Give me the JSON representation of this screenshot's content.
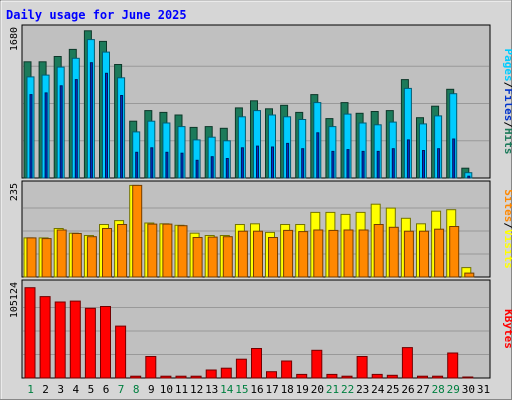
{
  "chart_data": {
    "type": "bar",
    "title": "Daily usage for June 2025",
    "colors": {
      "hits": "#1c7a5a",
      "files": "#00ccff",
      "pages": "#0033cc",
      "visits": "#ffff00",
      "sites": "#ff8800",
      "kbytes": "#ff0000",
      "panel_bg": "#c0c0c0",
      "frame_bg": "#d6d6d6",
      "title_color": "#0000ff",
      "weekend_label": "#008040"
    },
    "days": [
      "1",
      "2",
      "3",
      "4",
      "5",
      "6",
      "7",
      "8",
      "9",
      "10",
      "11",
      "12",
      "13",
      "14",
      "15",
      "16",
      "17",
      "18",
      "19",
      "20",
      "21",
      "22",
      "23",
      "24",
      "25",
      "26",
      "27",
      "28",
      "29",
      "30",
      "31"
    ],
    "weekend_days": [
      "1",
      "7",
      "8",
      "14",
      "15",
      "21",
      "22",
      "28",
      "29"
    ],
    "panels": [
      {
        "key": "hits_files_pages",
        "ymax_label": "1680",
        "ymax": 1680,
        "right_labels": [
          "Pages",
          "/",
          "Files",
          "/",
          "Hits"
        ],
        "right_label_colors": [
          "#00ccff",
          "#000000",
          "#0033cc",
          "#000000",
          "#1c7a5a"
        ],
        "series": [
          {
            "name": "Hits",
            "key": "hits",
            "values": [
              1310,
              1310,
              1370,
              1450,
              1660,
              1540,
              1280,
              640,
              760,
              740,
              710,
              570,
              580,
              560,
              790,
              870,
              780,
              820,
              740,
              940,
              670,
              850,
              730,
              750,
              760,
              1110,
              680,
              810,
              1000,
              110,
              0
            ]
          },
          {
            "name": "Files",
            "key": "files",
            "values": [
              1140,
              1160,
              1250,
              1350,
              1560,
              1420,
              1130,
              520,
              640,
              620,
              580,
              430,
              460,
              420,
              690,
              760,
              710,
              690,
              660,
              850,
              580,
              720,
              620,
              600,
              630,
              1010,
              610,
              700,
              950,
              60,
              0
            ]
          },
          {
            "name": "Pages",
            "key": "pages",
            "values": [
              940,
              960,
              1040,
              1110,
              1300,
              1180,
              930,
              290,
              340,
              290,
              280,
              200,
              240,
              220,
              340,
              360,
              350,
              390,
              330,
              510,
              300,
              320,
              300,
              300,
              330,
              430,
              310,
              330,
              440,
              20,
              0
            ]
          }
        ]
      },
      {
        "key": "visits_sites",
        "ymax_label": "235",
        "ymax": 235,
        "right_labels": [
          "Sites",
          "/",
          "Visits"
        ],
        "right_label_colors": [
          "#ff8800",
          "#000000",
          "#ffff00"
        ],
        "series": [
          {
            "name": "Visits",
            "key": "visits",
            "values": [
              100,
              100,
              124,
              112,
              106,
              134,
              144,
              234,
              138,
              136,
              132,
              112,
              106,
              106,
              134,
              136,
              114,
              134,
              134,
              165,
              165,
              160,
              165,
              186,
              176,
              150,
              136,
              168,
              172,
              24,
              0
            ]
          },
          {
            "name": "Sites",
            "key": "sites",
            "values": [
              100,
              98,
              120,
              111,
              103,
              124,
              134,
              234,
              135,
              135,
              131,
              101,
              102,
              103,
              117,
              117,
              101,
              119,
              116,
              120,
              119,
              120,
              120,
              134,
              127,
              117,
              117,
              122,
              129,
              10,
              0
            ]
          }
        ]
      },
      {
        "key": "kbytes",
        "ymax_label": "105124",
        "ymax": 105124,
        "right_labels": [
          "KBytes"
        ],
        "right_label_colors": [
          "#ff0000"
        ],
        "series": [
          {
            "name": "KBytes",
            "key": "kbytes",
            "values": [
              101000,
              91000,
              85000,
              86000,
              78000,
              80000,
              58000,
              2000,
              24000,
              2000,
              2000,
              2000,
              9000,
              11000,
              21000,
              33000,
              7000,
              19000,
              4000,
              31000,
              4000,
              2000,
              24000,
              4000,
              3000,
              34000,
              2000,
              2000,
              28000,
              1000,
              0
            ]
          }
        ]
      }
    ]
  }
}
